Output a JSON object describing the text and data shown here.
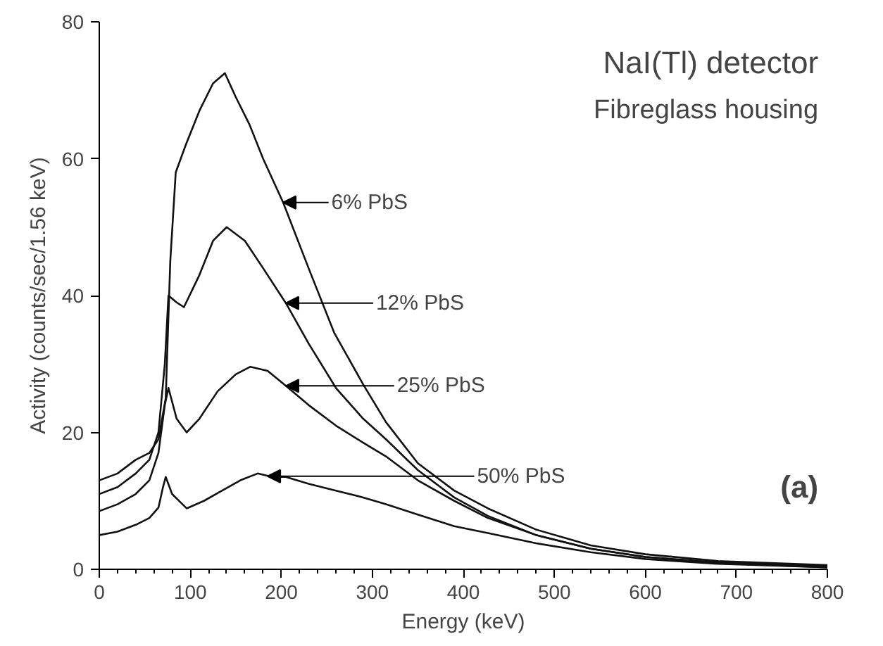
{
  "chart_data": {
    "type": "line",
    "xlabel": "Energy (keV)",
    "ylabel": "Activity (counts/sec/1.56 keV)",
    "xlim": [
      0,
      800
    ],
    "xticks": [
      0,
      100,
      200,
      300,
      400,
      500,
      600,
      700,
      800
    ],
    "ylim": [
      0,
      80
    ],
    "yticks": [
      0,
      20,
      40,
      60,
      80
    ],
    "grid": false,
    "marker": "none",
    "line_style": "solid",
    "series": [
      {
        "color": "#111111",
        "x": [
          0,
          20,
          40,
          55,
          65,
          73,
          78,
          84,
          95,
          110,
          125,
          138,
          150,
          165,
          180,
          202,
          230,
          258,
          290,
          315,
          350,
          390,
          427,
          480,
          540,
          600,
          680,
          800
        ],
        "values": [
          13,
          14,
          16,
          17,
          19,
          25,
          45,
          58,
          62,
          67,
          71,
          72.5,
          69,
          65,
          60,
          53.6,
          44,
          34.6,
          27,
          21.5,
          15.5,
          11.5,
          8.9,
          5.8,
          3.5,
          2.2,
          1.2,
          0.6
        ]
      },
      {
        "color": "#111111",
        "x": [
          0,
          20,
          40,
          55,
          65,
          72,
          76,
          85,
          93,
          110,
          125,
          140,
          160,
          180,
          205,
          230,
          260,
          290,
          315,
          350,
          390,
          427,
          480,
          540,
          600,
          680,
          800
        ],
        "values": [
          11,
          12,
          14,
          16,
          20,
          30,
          40,
          39,
          38.3,
          43,
          48,
          50,
          48,
          44,
          38.9,
          33,
          26.5,
          22,
          19,
          14.5,
          10.5,
          7.8,
          5,
          3,
          1.8,
          1,
          0.4
        ]
      },
      {
        "color": "#111111",
        "x": [
          0,
          20,
          40,
          55,
          65,
          72,
          76,
          85,
          96,
          110,
          130,
          150,
          166,
          185,
          205,
          230,
          260,
          290,
          315,
          350,
          390,
          427,
          480,
          540,
          600,
          680,
          800
        ],
        "values": [
          8.5,
          9.5,
          11,
          13,
          17,
          24,
          26.5,
          22,
          20,
          22,
          26,
          28.5,
          29.6,
          29,
          26.8,
          24,
          21,
          18.5,
          16.5,
          13,
          10,
          7.5,
          5,
          3,
          1.8,
          0.9,
          0.3
        ]
      },
      {
        "color": "#111111",
        "x": [
          0,
          20,
          40,
          55,
          65,
          70,
          73,
          80,
          96,
          115,
          135,
          155,
          174,
          190,
          205,
          230,
          260,
          290,
          315,
          350,
          390,
          427,
          480,
          540,
          600,
          680,
          800
        ],
        "values": [
          5,
          5.5,
          6.5,
          7.5,
          9,
          12,
          13.5,
          11,
          8.9,
          10,
          11.5,
          13,
          14,
          13.5,
          13.5,
          12.5,
          11.5,
          10.5,
          9.5,
          8,
          6.3,
          5.3,
          3.8,
          2.5,
          1.5,
          0.8,
          0.3
        ]
      }
    ],
    "annotations": [
      {
        "text": "6% PbS",
        "x": 202,
        "y": 53.6
      },
      {
        "text": "12% PbS",
        "x": 205,
        "y": 38.9
      },
      {
        "text": "25% PbS",
        "x": 205,
        "y": 26.8
      },
      {
        "text": "50% PbS",
        "x": 185,
        "y": 13.6
      },
      "NaI(Tl) detector",
      "Fibreglass housing",
      "(a)"
    ]
  }
}
